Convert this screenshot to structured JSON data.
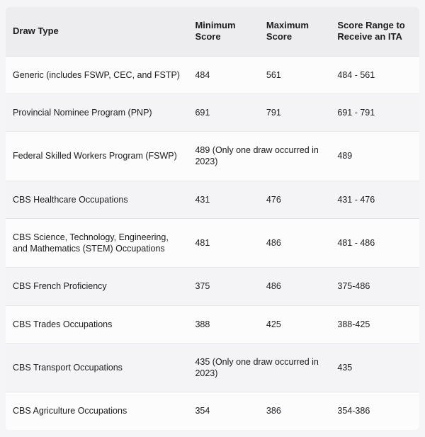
{
  "columns": [
    "Draw Type",
    "Minimum Score",
    "Maximum Score",
    "Score Range to Receive an ITA"
  ],
  "rows": [
    {
      "draw": "Generic (includes FSWP, CEC, and FSTP)",
      "min": "484",
      "max": "561",
      "range": "484 - 561",
      "merge_min_max": false
    },
    {
      "draw": "Provincial Nominee Program (PNP)",
      "min": "691",
      "max": "791",
      "range": "691 - 791",
      "merge_min_max": false
    },
    {
      "draw": "Federal Skilled Workers Program (FSWP)",
      "min": "489 (Only one draw occurred in 2023)",
      "max": "",
      "range": "489",
      "merge_min_max": true
    },
    {
      "draw": "CBS Healthcare Occupations",
      "min": "431",
      "max": "476",
      "range": "431 - 476",
      "merge_min_max": false
    },
    {
      "draw": "CBS Science, Technology, Engineering, and Mathematics (STEM) Occupations",
      "min": "481",
      "max": "486",
      "range": "481 - 486",
      "merge_min_max": false
    },
    {
      "draw": "CBS French Proficiency",
      "min": "375",
      "max": "486",
      "range": "375-486",
      "merge_min_max": false
    },
    {
      "draw": "CBS Trades Occupations",
      "min": "388",
      "max": "425",
      "range": "388-425",
      "merge_min_max": false
    },
    {
      "draw": "CBS Transport Occupations",
      "min": "435 (Only one draw occurred in 2023)",
      "max": "",
      "range": "435",
      "merge_min_max": true
    },
    {
      "draw": "CBS Agriculture Occupations",
      "min": "354",
      "max": "386",
      "range": "354-386",
      "merge_min_max": false
    }
  ],
  "style": {
    "header_bg": "#edecef",
    "row_odd_bg": "#fcfcfd",
    "row_even_bg": "#f4f4f6",
    "border_color": "#e5e5ea",
    "text_color": "#1c1c1e",
    "header_font_size": 13,
    "cell_font_size": 12.5,
    "col_widths": {
      "draw": 246,
      "min": 96,
      "max": 96,
      "range": 120
    }
  }
}
